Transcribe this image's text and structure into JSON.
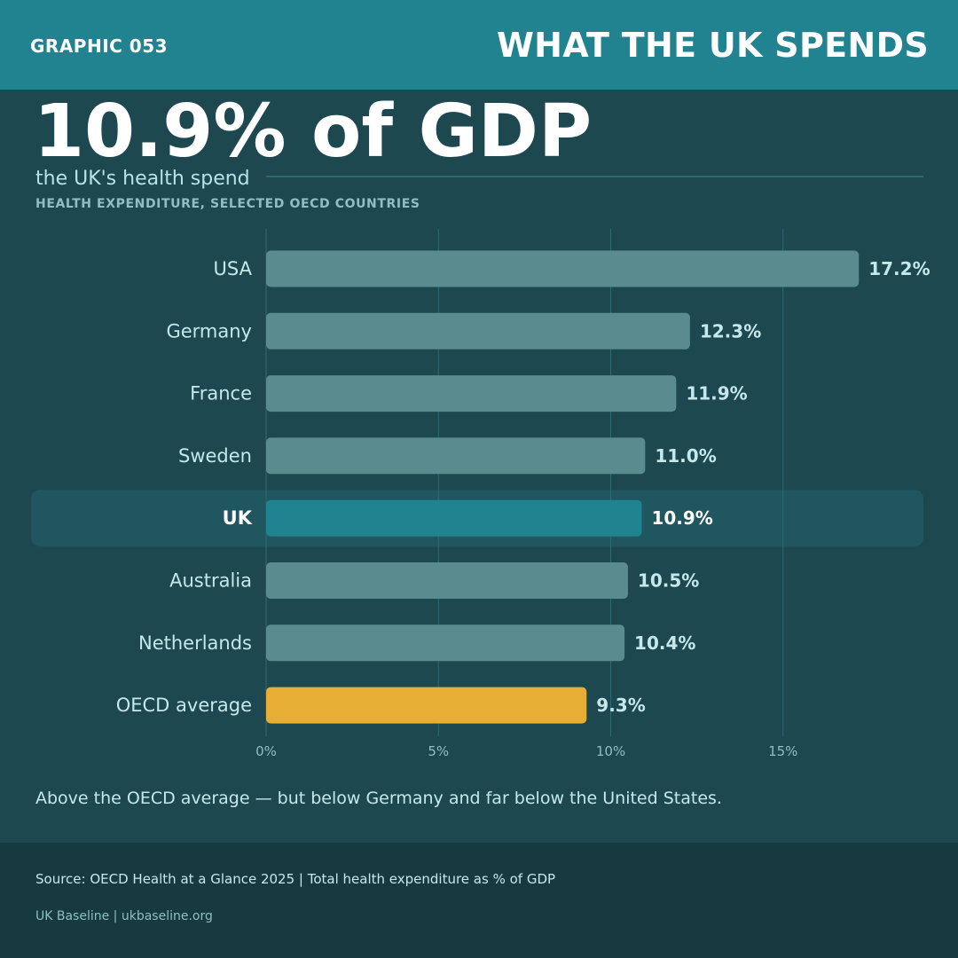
{
  "header": {
    "graphic_number": "GRAPHIC 053",
    "title": "WHAT THE UK SPENDS"
  },
  "headline": {
    "big_stat": "10.9% of GDP",
    "subtitle": "the UK's health spend"
  },
  "chart_data": {
    "type": "bar",
    "orientation": "horizontal",
    "title": "HEALTH EXPENDITURE, SELECTED OECD COUNTRIES",
    "categories": [
      "USA",
      "Germany",
      "France",
      "Sweden",
      "UK",
      "Australia",
      "Netherlands",
      "OECD average"
    ],
    "values": [
      17.2,
      12.3,
      11.9,
      11.0,
      10.9,
      10.5,
      10.4,
      9.3
    ],
    "value_labels": [
      "17.2%",
      "12.3%",
      "11.9%",
      "11.0%",
      "10.9%",
      "10.5%",
      "10.4%",
      "9.3%"
    ],
    "highlight": "UK",
    "average_category": "OECD average",
    "xlim": [
      0,
      19
    ],
    "xticks": [
      0,
      5,
      10,
      15
    ],
    "xtick_labels": [
      "0%",
      "5%",
      "10%",
      "15%"
    ],
    "grid": true,
    "colors": {
      "default_bar": "#5a8b8e",
      "highlight_bar": "#20838f",
      "highlight_band": "#1f5660",
      "average_bar": "#e6ae35",
      "grid": "#2d6a72",
      "category_text": "#c4e8eb",
      "value_text": "#c4e8eb",
      "tick_text": "#8fbfc3"
    }
  },
  "caption": "Above the OECD average — but below Germany and far below the United States.",
  "footer": {
    "source": "Source: OECD Health at a Glance 2025  |  Total health expenditure as % of GDP",
    "credit": "UK Baseline  |  ukbaseline.org"
  }
}
